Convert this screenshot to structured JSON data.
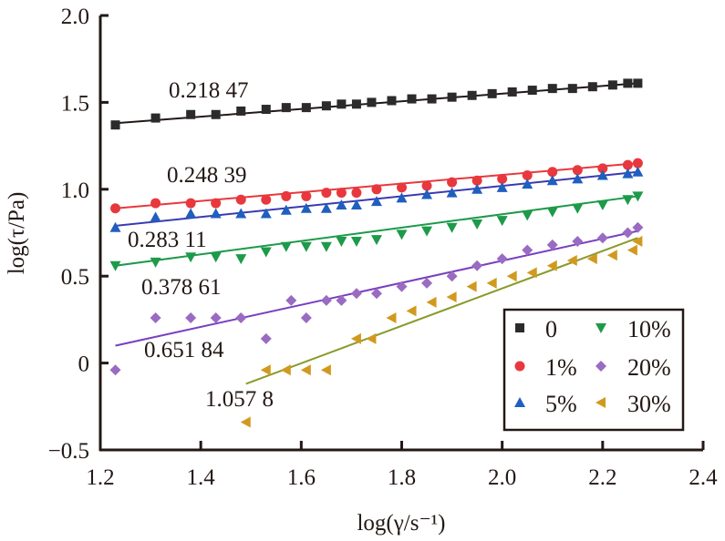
{
  "chart_data": {
    "type": "scatter",
    "title": "",
    "xlabel": "log(γ/s⁻¹)",
    "ylabel": "log(τ/Pa)",
    "xlim": [
      1.2,
      2.4
    ],
    "ylim": [
      -0.5,
      2.0
    ],
    "x_ticks": [
      "1.2",
      "1.4",
      "1.6",
      "1.8",
      "2.0",
      "2.2",
      "2.4"
    ],
    "y_ticks": [
      "−0.5",
      "0",
      "0.5",
      "1.0",
      "1.5",
      "2.0"
    ],
    "y_tick_values": [
      -0.5,
      0,
      0.5,
      1.0,
      1.5,
      2.0
    ],
    "x_tick_values": [
      1.2,
      1.4,
      1.6,
      1.8,
      2.0,
      2.2,
      2.4
    ],
    "grid": false,
    "legend_placement": "bottom-right",
    "series": [
      {
        "name": "0",
        "color": "#2b2b2b",
        "marker": "square",
        "slope_label": "0.218 47",
        "fit": {
          "x0": 1.23,
          "y0": 1.38,
          "x1": 2.27,
          "y1": 1.61
        },
        "x": [
          1.23,
          1.31,
          1.38,
          1.43,
          1.48,
          1.53,
          1.57,
          1.61,
          1.65,
          1.68,
          1.71,
          1.74,
          1.78,
          1.82,
          1.86,
          1.9,
          1.94,
          1.98,
          2.02,
          2.06,
          2.1,
          2.14,
          2.18,
          2.22,
          2.25,
          2.27
        ],
        "y": [
          1.37,
          1.41,
          1.43,
          1.43,
          1.45,
          1.46,
          1.47,
          1.47,
          1.48,
          1.49,
          1.49,
          1.5,
          1.51,
          1.52,
          1.52,
          1.53,
          1.54,
          1.55,
          1.56,
          1.57,
          1.58,
          1.58,
          1.59,
          1.6,
          1.61,
          1.61
        ]
      },
      {
        "name": "1%",
        "color": "#e8383d",
        "marker": "circle",
        "slope_label": "0.248 39",
        "fit": {
          "x0": 1.23,
          "y0": 0.89,
          "x1": 2.27,
          "y1": 1.15
        },
        "x": [
          1.23,
          1.31,
          1.38,
          1.43,
          1.48,
          1.53,
          1.57,
          1.61,
          1.65,
          1.68,
          1.71,
          1.75,
          1.8,
          1.85,
          1.9,
          1.95,
          2.0,
          2.05,
          2.1,
          2.15,
          2.2,
          2.25,
          2.27
        ],
        "y": [
          0.89,
          0.92,
          0.92,
          0.92,
          0.94,
          0.94,
          0.96,
          0.96,
          0.98,
          0.98,
          0.98,
          1.0,
          1.01,
          1.02,
          1.04,
          1.05,
          1.06,
          1.08,
          1.1,
          1.11,
          1.12,
          1.14,
          1.15
        ]
      },
      {
        "name": "5%",
        "color": "#1f5fbf",
        "marker": "triangle-up",
        "slope_label": "0.283 11",
        "fit": {
          "x0": 1.23,
          "y0": 0.79,
          "x1": 2.27,
          "y1": 1.1
        },
        "x": [
          1.23,
          1.31,
          1.38,
          1.43,
          1.48,
          1.53,
          1.57,
          1.61,
          1.65,
          1.68,
          1.71,
          1.75,
          1.8,
          1.85,
          1.9,
          1.95,
          2.0,
          2.05,
          2.1,
          2.15,
          2.2,
          2.25,
          2.27
        ],
        "y": [
          0.78,
          0.84,
          0.86,
          0.86,
          0.86,
          0.86,
          0.88,
          0.89,
          0.89,
          0.91,
          0.91,
          0.93,
          0.95,
          0.97,
          0.98,
          1.0,
          1.01,
          1.03,
          1.05,
          1.06,
          1.08,
          1.09,
          1.1
        ]
      },
      {
        "name": "10%",
        "color": "#1d9a4a",
        "marker": "triangle-down",
        "slope_label": "0.378 61",
        "fit": {
          "x0": 1.23,
          "y0": 0.56,
          "x1": 2.27,
          "y1": 0.96
        },
        "x": [
          1.23,
          1.31,
          1.38,
          1.43,
          1.48,
          1.53,
          1.57,
          1.61,
          1.65,
          1.68,
          1.71,
          1.75,
          1.8,
          1.85,
          1.9,
          1.95,
          2.0,
          2.05,
          2.1,
          2.15,
          2.2,
          2.25,
          2.27
        ],
        "y": [
          0.56,
          0.58,
          0.61,
          0.61,
          0.6,
          0.64,
          0.67,
          0.67,
          0.67,
          0.7,
          0.7,
          0.71,
          0.74,
          0.76,
          0.78,
          0.8,
          0.82,
          0.85,
          0.87,
          0.89,
          0.91,
          0.94,
          0.96
        ]
      },
      {
        "name": "20%",
        "color": "#9a6bc2",
        "marker": "diamond",
        "slope_label": "0.651 84",
        "fit": {
          "x0": 1.23,
          "y0": 0.1,
          "x1": 2.27,
          "y1": 0.76
        },
        "x": [
          1.23,
          1.31,
          1.38,
          1.43,
          1.48,
          1.53,
          1.58,
          1.61,
          1.65,
          1.68,
          1.71,
          1.75,
          1.8,
          1.85,
          1.9,
          1.95,
          2.0,
          2.05,
          2.1,
          2.15,
          2.2,
          2.25,
          2.27
        ],
        "y": [
          -0.04,
          0.26,
          0.26,
          0.26,
          0.26,
          0.14,
          0.36,
          0.26,
          0.36,
          0.36,
          0.4,
          0.4,
          0.44,
          0.46,
          0.5,
          0.56,
          0.6,
          0.65,
          0.68,
          0.7,
          0.72,
          0.75,
          0.78
        ]
      },
      {
        "name": "30%",
        "color": "#d19a1f",
        "marker": "triangle-left",
        "slope_label": "1.057 8",
        "fit": {
          "x0": 1.49,
          "y0": -0.12,
          "x1": 2.27,
          "y1": 0.72
        },
        "x": [
          1.49,
          1.53,
          1.57,
          1.61,
          1.65,
          1.71,
          1.74,
          1.78,
          1.82,
          1.86,
          1.9,
          1.94,
          1.98,
          2.02,
          2.06,
          2.1,
          2.14,
          2.18,
          2.22,
          2.26,
          2.27
        ],
        "y": [
          -0.34,
          -0.04,
          -0.04,
          -0.04,
          -0.04,
          0.14,
          0.14,
          0.26,
          0.3,
          0.35,
          0.38,
          0.44,
          0.46,
          0.5,
          0.52,
          0.56,
          0.59,
          0.6,
          0.62,
          0.65,
          0.7
        ]
      }
    ]
  }
}
